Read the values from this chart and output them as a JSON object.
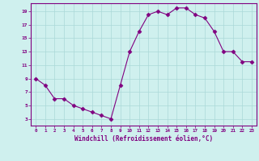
{
  "x": [
    0,
    1,
    2,
    3,
    4,
    5,
    6,
    7,
    8,
    9,
    10,
    11,
    12,
    13,
    14,
    15,
    16,
    17,
    18,
    19,
    20,
    21,
    22,
    23
  ],
  "y": [
    9,
    8,
    6,
    6,
    5,
    4.5,
    4,
    3.5,
    3,
    8,
    13,
    16,
    18.5,
    19,
    18.5,
    19.5,
    19.5,
    18.5,
    18,
    16,
    13,
    13,
    11.5,
    11.5
  ],
  "line_color": "#800080",
  "marker": "D",
  "marker_size": 2.5,
  "background_color": "#cff0ee",
  "grid_color": "#aad8d8",
  "xlabel": "Windchill (Refroidissement éolien,°C)",
  "xlabel_color": "#800080",
  "tick_color": "#800080",
  "yticks": [
    3,
    5,
    7,
    9,
    11,
    13,
    15,
    17,
    19
  ],
  "ylim": [
    2.0,
    20.2
  ],
  "xlim": [
    -0.5,
    23.5
  ],
  "xticks": [
    0,
    1,
    2,
    3,
    4,
    5,
    6,
    7,
    8,
    9,
    10,
    11,
    12,
    13,
    14,
    15,
    16,
    17,
    18,
    19,
    20,
    21,
    22,
    23
  ]
}
